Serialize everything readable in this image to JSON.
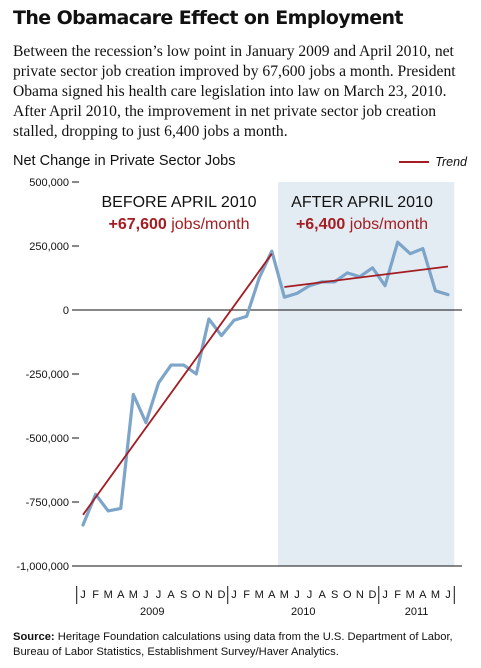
{
  "title": "The Obamacare Effect on Employment",
  "intro": "Between the recession’s low point in January 2009 and April 2010, net private sector job creation improved by 67,600 jobs a month. President Obama signed his health care legislation into law on March 23, 2010. After April 2010, the improvement in net private sector job creation stalled, dropping to just 6,400 jobs a month.",
  "source": {
    "label": "Source:",
    "text": " Heritage Foundation calculations using data from the U.S. Department of Labor, Bureau of Labor Statistics, Establishment Survey/Haver Analytics."
  },
  "colors": {
    "series": "#7da4c9",
    "trend": "#a31d22",
    "shade": "#e3ecf2",
    "axis": "#111111"
  },
  "chart_data": {
    "type": "line",
    "title": "Net Change in Private Sector Jobs",
    "legend": {
      "label": "Trend",
      "placement": "top-right"
    },
    "ylim": [
      -1000000,
      500000
    ],
    "yticks": [
      500000,
      250000,
      0,
      -250000,
      -500000,
      -750000,
      -1000000
    ],
    "ytick_labels": [
      "500,000",
      "250,000",
      "0",
      "-250,000",
      "-500,000",
      "-750,000",
      "-1,000,000"
    ],
    "x_tick_labels": [
      "J",
      "F",
      "M",
      "A",
      "M",
      "J",
      "J",
      "A",
      "S",
      "O",
      "N",
      "D",
      "J",
      "F",
      "M",
      "A",
      "M",
      "J",
      "J",
      "A",
      "S",
      "O",
      "N",
      "D",
      "J",
      "F",
      "M",
      "A",
      "M",
      "J"
    ],
    "years": [
      {
        "label": "2009",
        "start": 0,
        "end": 11
      },
      {
        "label": "2010",
        "start": 12,
        "end": 23
      },
      {
        "label": "2011",
        "start": 24,
        "end": 29
      }
    ],
    "series": [
      {
        "values": [
          -840000,
          -720000,
          -785000,
          -775000,
          -330000,
          -440000,
          -285000,
          -215000,
          -215000,
          -250000,
          -35000,
          -100000,
          -40000,
          -25000,
          125000,
          230000,
          50000,
          65000,
          95000,
          110000,
          110000,
          145000,
          130000,
          165000,
          95000,
          265000,
          220000,
          240000,
          75000,
          60000
        ]
      }
    ],
    "shaded_region": {
      "start": 15.5,
      "end": 29.5
    },
    "trends": [
      {
        "start": [
          0,
          -800000
        ],
        "end": [
          15,
          220000
        ]
      },
      {
        "start": [
          16,
          90000
        ],
        "end": [
          29,
          170000
        ]
      }
    ],
    "annotations": [
      {
        "heading": "BEFORE APRIL 2010",
        "value": "+67,600",
        "unit": " jobs/month"
      },
      {
        "heading": "AFTER APRIL 2010",
        "value": "+6,400",
        "unit": " jobs/month"
      }
    ]
  }
}
